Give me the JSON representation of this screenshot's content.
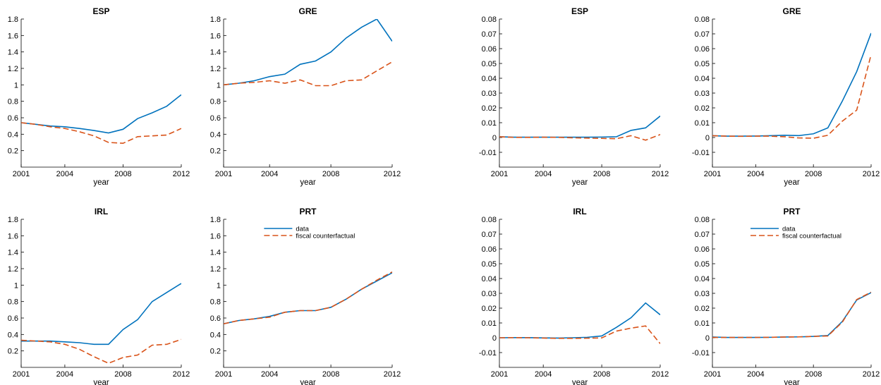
{
  "colors": {
    "data": "#0072BD",
    "fiscal_counterfactual": "#D95319"
  },
  "chart_data": [
    {
      "type": "line",
      "title": "ESP",
      "xlabel": "year",
      "ylabel": "",
      "xlim": [
        2001,
        2012
      ],
      "ylim": [
        0,
        1.8
      ],
      "xticks": [
        "2001",
        "2004",
        "2008",
        "2012"
      ],
      "yticks": [
        "0.2",
        "0.4",
        "0.6",
        "0.8",
        "1",
        "1.2",
        "1.4",
        "1.6",
        "1.8"
      ],
      "x": [
        2001,
        2002,
        2003,
        2004,
        2005,
        2006,
        2007,
        2008,
        2009,
        2010,
        2011,
        2012
      ],
      "series": [
        {
          "name": "data",
          "style": "solid",
          "values": [
            0.54,
            0.52,
            0.5,
            0.49,
            0.47,
            0.445,
            0.415,
            0.46,
            0.59,
            0.66,
            0.74,
            0.88
          ]
        },
        {
          "name": "fiscal counterfactual",
          "style": "dashed",
          "values": [
            0.54,
            0.52,
            0.49,
            0.47,
            0.43,
            0.38,
            0.3,
            0.29,
            0.37,
            0.38,
            0.39,
            0.47
          ]
        }
      ]
    },
    {
      "type": "line",
      "title": "GRE",
      "xlabel": "year",
      "ylabel": "",
      "xlim": [
        2001,
        2012
      ],
      "ylim": [
        0,
        1.8
      ],
      "xticks": [
        "2001",
        "2004",
        "2008",
        "2012"
      ],
      "yticks": [
        "0.2",
        "0.4",
        "0.6",
        "0.8",
        "1",
        "1.2",
        "1.4",
        "1.6",
        "1.8"
      ],
      "x": [
        2001,
        2002,
        2003,
        2004,
        2005,
        2006,
        2007,
        2008,
        2009,
        2010,
        2011,
        2012
      ],
      "series": [
        {
          "name": "data",
          "style": "solid",
          "values": [
            1.0,
            1.02,
            1.05,
            1.1,
            1.13,
            1.25,
            1.29,
            1.4,
            1.57,
            1.7,
            1.8,
            1.53
          ]
        },
        {
          "name": "fiscal counterfactual",
          "style": "dashed",
          "values": [
            1.0,
            1.02,
            1.03,
            1.05,
            1.02,
            1.06,
            0.99,
            0.99,
            1.05,
            1.06,
            1.17,
            1.28
          ]
        }
      ]
    },
    {
      "type": "line",
      "title": "IRL",
      "xlabel": "year",
      "ylabel": "",
      "xlim": [
        2001,
        2012
      ],
      "ylim": [
        0,
        1.8
      ],
      "xticks": [
        "2001",
        "2004",
        "2008",
        "2012"
      ],
      "yticks": [
        "0.2",
        "0.4",
        "0.6",
        "0.8",
        "1",
        "1.2",
        "1.4",
        "1.6",
        "1.8"
      ],
      "x": [
        2001,
        2002,
        2003,
        2004,
        2005,
        2006,
        2007,
        2008,
        2009,
        2010,
        2011,
        2012
      ],
      "series": [
        {
          "name": "data",
          "style": "solid",
          "values": [
            0.32,
            0.32,
            0.32,
            0.31,
            0.3,
            0.28,
            0.28,
            0.46,
            0.58,
            0.8,
            0.91,
            1.02
          ]
        },
        {
          "name": "fiscal counterfactual",
          "style": "dashed",
          "values": [
            0.33,
            0.32,
            0.31,
            0.28,
            0.22,
            0.13,
            0.05,
            0.12,
            0.15,
            0.27,
            0.28,
            0.34
          ]
        }
      ]
    },
    {
      "type": "line",
      "title": "PRT",
      "xlabel": "year",
      "ylabel": "",
      "xlim": [
        2001,
        2012
      ],
      "ylim": [
        0,
        1.8
      ],
      "xticks": [
        "2001",
        "2004",
        "2008",
        "2012"
      ],
      "yticks": [
        "0.2",
        "0.4",
        "0.6",
        "0.8",
        "1",
        "1.2",
        "1.4",
        "1.6",
        "1.8"
      ],
      "legend": "top-center",
      "x": [
        2001,
        2002,
        2003,
        2004,
        2005,
        2006,
        2007,
        2008,
        2009,
        2010,
        2011,
        2012
      ],
      "series": [
        {
          "name": "data",
          "style": "solid",
          "values": [
            0.53,
            0.57,
            0.59,
            0.62,
            0.67,
            0.69,
            0.69,
            0.73,
            0.83,
            0.95,
            1.05,
            1.15
          ]
        },
        {
          "name": "fiscal counterfactual",
          "style": "dashed",
          "values": [
            0.53,
            0.57,
            0.59,
            0.61,
            0.67,
            0.69,
            0.69,
            0.73,
            0.83,
            0.95,
            1.06,
            1.16
          ]
        }
      ]
    },
    {
      "type": "line",
      "title": "ESP",
      "xlabel": "year",
      "ylabel": "",
      "xlim": [
        2001,
        2012
      ],
      "ylim": [
        -0.02,
        0.08
      ],
      "xticks": [
        "2001",
        "2004",
        "2008",
        "2012"
      ],
      "yticks": [
        "-0.01",
        "0",
        "0.01",
        "0.02",
        "0.03",
        "0.04",
        "0.05",
        "0.06",
        "0.07",
        "0.08"
      ],
      "x": [
        2001,
        2002,
        2003,
        2004,
        2005,
        2006,
        2007,
        2008,
        2009,
        2010,
        2011,
        2012
      ],
      "series": [
        {
          "name": "data",
          "style": "solid",
          "values": [
            0.0005,
            0.0002,
            0.0002,
            0.0002,
            0.0002,
            0.0002,
            0.0002,
            0.0003,
            0.0005,
            0.0048,
            0.0065,
            0.0145
          ]
        },
        {
          "name": "fiscal counterfactual",
          "style": "dashed",
          "values": [
            0.0005,
            0.0001,
            0.0001,
            0.0002,
            0.0001,
            -0.0002,
            -0.0004,
            -0.0006,
            -0.0008,
            0.0012,
            -0.0018,
            0.002
          ]
        }
      ]
    },
    {
      "type": "line",
      "title": "GRE",
      "xlabel": "year",
      "ylabel": "",
      "xlim": [
        2001,
        2012
      ],
      "ylim": [
        -0.02,
        0.08
      ],
      "xticks": [
        "2001",
        "2004",
        "2008",
        "2012"
      ],
      "yticks": [
        "-0.01",
        "0",
        "0.01",
        "0.02",
        "0.03",
        "0.04",
        "0.05",
        "0.06",
        "0.07",
        "0.08"
      ],
      "x": [
        2001,
        2002,
        2003,
        2004,
        2005,
        2006,
        2007,
        2008,
        2009,
        2010,
        2011,
        2012
      ],
      "series": [
        {
          "name": "data",
          "style": "solid",
          "values": [
            0.0012,
            0.0009,
            0.0009,
            0.001,
            0.0012,
            0.0015,
            0.0013,
            0.0025,
            0.0065,
            0.0245,
            0.0445,
            0.0705
          ]
        },
        {
          "name": "fiscal counterfactual",
          "style": "dashed",
          "values": [
            0.0012,
            0.0009,
            0.0008,
            0.0009,
            0.0009,
            0.0005,
            -0.0003,
            -0.0005,
            0.0015,
            0.011,
            0.0185,
            0.056
          ]
        }
      ]
    },
    {
      "type": "line",
      "title": "IRL",
      "xlabel": "year",
      "ylabel": "",
      "xlim": [
        2001,
        2012
      ],
      "ylim": [
        -0.02,
        0.08
      ],
      "xticks": [
        "2001",
        "2004",
        "2008",
        "2012"
      ],
      "yticks": [
        "-0.01",
        "0",
        "0.01",
        "0.02",
        "0.03",
        "0.04",
        "0.05",
        "0.06",
        "0.07",
        "0.08"
      ],
      "x": [
        2001,
        2002,
        2003,
        2004,
        2005,
        2006,
        2007,
        2008,
        2009,
        2010,
        2011,
        2012
      ],
      "series": [
        {
          "name": "data",
          "style": "solid",
          "values": [
            0.0,
            0.0001,
            0.0001,
            -0.0001,
            -0.0002,
            0.0,
            0.0003,
            0.0012,
            0.007,
            0.0135,
            0.0235,
            0.0155
          ]
        },
        {
          "name": "fiscal counterfactual",
          "style": "dashed",
          "values": [
            0.0,
            0.0001,
            0.0,
            -0.0002,
            -0.0004,
            -0.0004,
            -0.0003,
            -0.0001,
            0.0045,
            0.0065,
            0.008,
            -0.004
          ]
        }
      ]
    },
    {
      "type": "line",
      "title": "PRT",
      "xlabel": "year",
      "ylabel": "",
      "xlim": [
        2001,
        2012
      ],
      "ylim": [
        -0.02,
        0.08
      ],
      "xticks": [
        "2001",
        "2004",
        "2008",
        "2012"
      ],
      "yticks": [
        "-0.01",
        "0",
        "0.01",
        "0.02",
        "0.03",
        "0.04",
        "0.05",
        "0.06",
        "0.07",
        "0.08"
      ],
      "legend": "top-center",
      "x": [
        2001,
        2002,
        2003,
        2004,
        2005,
        2006,
        2007,
        2008,
        2009,
        2010,
        2011,
        2012
      ],
      "series": [
        {
          "name": "data",
          "style": "solid",
          "values": [
            0.0005,
            0.0002,
            0.0002,
            0.0002,
            0.0003,
            0.0005,
            0.0006,
            0.0009,
            0.0015,
            0.011,
            0.0255,
            0.0305
          ]
        },
        {
          "name": "fiscal counterfactual",
          "style": "dashed",
          "values": [
            0.0002,
            0.0002,
            0.0002,
            0.0002,
            0.0003,
            0.0005,
            0.0006,
            0.0009,
            0.0012,
            0.0105,
            0.0258,
            0.0308
          ]
        }
      ]
    }
  ]
}
